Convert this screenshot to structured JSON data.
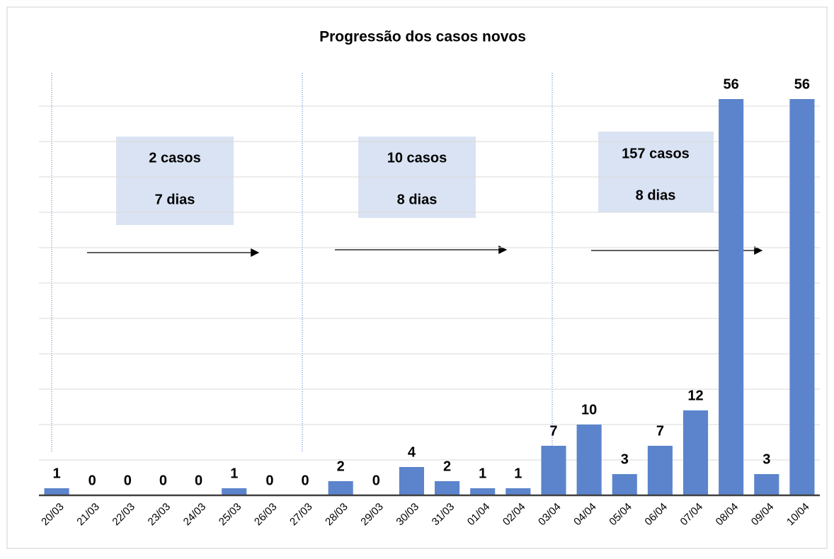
{
  "chart_data": {
    "type": "bar",
    "title": "Progressão dos casos novos",
    "categories": [
      "20/03",
      "21/03",
      "22/03",
      "23/03",
      "24/03",
      "25/03",
      "26/03",
      "27/03",
      "28/03",
      "29/03",
      "30/03",
      "31/03",
      "01/04",
      "02/04",
      "03/04",
      "04/04",
      "05/04",
      "06/04",
      "07/04",
      "08/04",
      "09/04",
      "10/04"
    ],
    "values": [
      1,
      0,
      0,
      0,
      0,
      1,
      0,
      0,
      2,
      0,
      4,
      2,
      1,
      1,
      7,
      10,
      3,
      7,
      12,
      56,
      3,
      56
    ],
    "color": "#5b84cc",
    "ylim": [
      0,
      60
    ],
    "yticks": [
      0,
      5,
      10,
      15,
      20,
      25,
      30,
      35,
      40,
      45,
      50,
      55
    ],
    "show_ytick_labels": false,
    "grid": true,
    "annotations": [
      [
        "2 casos",
        "7 dias"
      ],
      [
        "10 casos",
        "8 dias"
      ],
      [
        "157 casos",
        "8 dias"
      ]
    ]
  }
}
